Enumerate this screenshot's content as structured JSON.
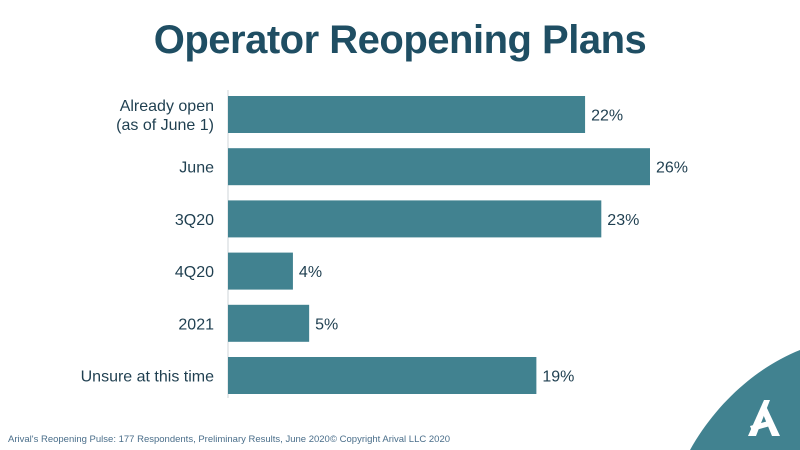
{
  "colors": {
    "bar": "#418290",
    "title": "#1f4e63",
    "text": "#1f3f50",
    "axis": "#cfd4d8",
    "corner": "#418290"
  },
  "footer": {
    "source": "Arival's Reopening Pulse: 177 Respondents, Preliminary Results, June 2020",
    "copyright": "© Copyright Arival LLC 2020"
  },
  "logo_icon": "arival-a-logo",
  "chart_data": {
    "type": "bar",
    "orientation": "horizontal",
    "title": "Operator Reopening Plans",
    "categories": [
      [
        "Already open",
        "(as of June 1)"
      ],
      [
        "June"
      ],
      [
        "3Q20"
      ],
      [
        "4Q20"
      ],
      [
        "2021"
      ],
      [
        "Unsure at this time"
      ]
    ],
    "values": [
      22,
      26,
      23,
      4,
      5,
      19
    ],
    "data_labels": [
      "22%",
      "26%",
      "23%",
      "4%",
      "5%",
      "19%"
    ],
    "value_unit": "%",
    "xlim": [
      0,
      26
    ],
    "grid": false,
    "legend": "none"
  }
}
